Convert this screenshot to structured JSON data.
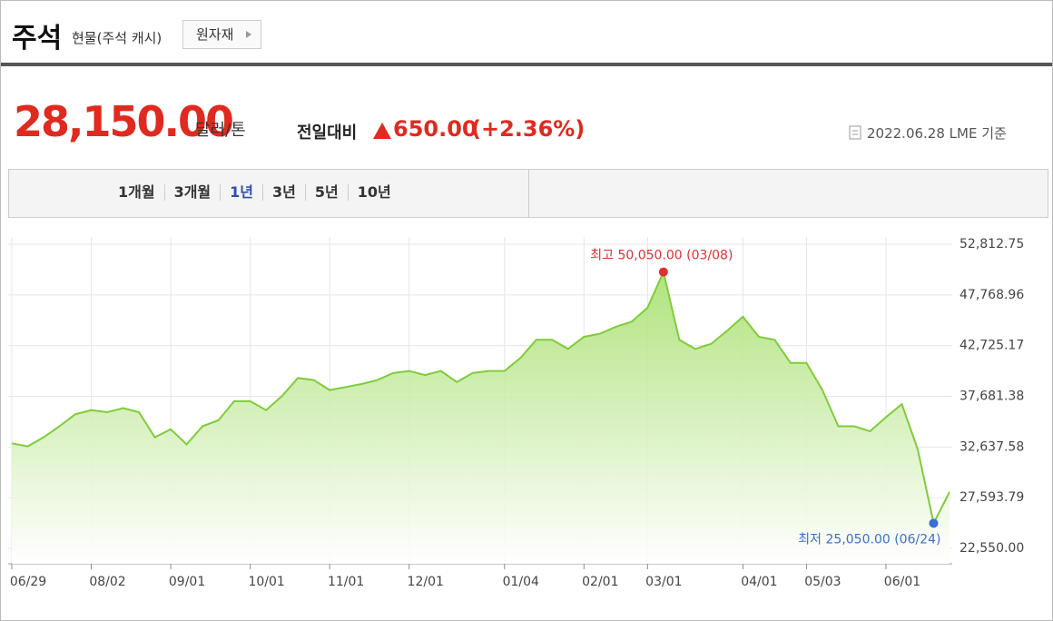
{
  "header": {
    "title": "주석",
    "subtitle": "현물(주석 캐시)",
    "button": "원자재"
  },
  "quote": {
    "price": "28,150.00",
    "unit": "달러/톤",
    "change_label": "전일대비",
    "change": "650.00",
    "change_pct": "(+2.36%)",
    "date": "2022.06.28 LME 기준"
  },
  "tabs": {
    "items": [
      "1개월",
      "3개월",
      "1년",
      "3년",
      "5년",
      "10년"
    ],
    "active": 2
  },
  "chart_data": {
    "type": "line",
    "categories": [
      "06/29",
      null,
      null,
      null,
      null,
      "08/02",
      null,
      null,
      null,
      null,
      "09/01",
      null,
      null,
      null,
      null,
      "10/01",
      null,
      null,
      null,
      null,
      "11/01",
      null,
      null,
      null,
      null,
      "12/01",
      null,
      null,
      null,
      null,
      null,
      "01/04",
      null,
      null,
      null,
      null,
      "02/01",
      null,
      null,
      null,
      "03/01",
      null,
      null,
      null,
      null,
      null,
      "04/01",
      null,
      null,
      null,
      "05/03",
      null,
      null,
      null,
      null,
      "06/01",
      null,
      null,
      null,
      null
    ],
    "values": [
      33000,
      32700,
      33600,
      34700,
      35900,
      36300,
      36100,
      36500,
      36100,
      33600,
      34400,
      32900,
      34700,
      35300,
      37200,
      37200,
      36300,
      37700,
      39500,
      39300,
      38300,
      38600,
      38900,
      39300,
      40000,
      40200,
      39800,
      40200,
      39100,
      40000,
      40200,
      40200,
      41500,
      43300,
      43300,
      42400,
      43600,
      43900,
      44600,
      45100,
      46500,
      50050,
      43300,
      42400,
      42900,
      44200,
      45600,
      43600,
      43300,
      41000,
      41000,
      38300,
      34700,
      34700,
      34200,
      35600,
      36900,
      32400,
      25050,
      28150
    ],
    "color": "#7fcc3a",
    "ylim": [
      22550,
      52812.75
    ],
    "yticks": [
      {
        "value": 22550,
        "label": "22,550.00"
      },
      {
        "value": 27593.79,
        "label": "27,593.79"
      },
      {
        "value": 32637.58,
        "label": "32,637.58"
      },
      {
        "value": 37681.38,
        "label": "37,681.38"
      },
      {
        "value": 42725.17,
        "label": "42,725.17"
      },
      {
        "value": 47768.96,
        "label": "47,768.96"
      },
      {
        "value": 52812.75,
        "label": "52,812.75"
      }
    ],
    "grid": true,
    "max_label": "최고 50,050.00 (03/08)",
    "max_color": "#e03030",
    "min_label": "최저 25,050.00 (06/24)",
    "min_color": "#3a6fd0"
  }
}
